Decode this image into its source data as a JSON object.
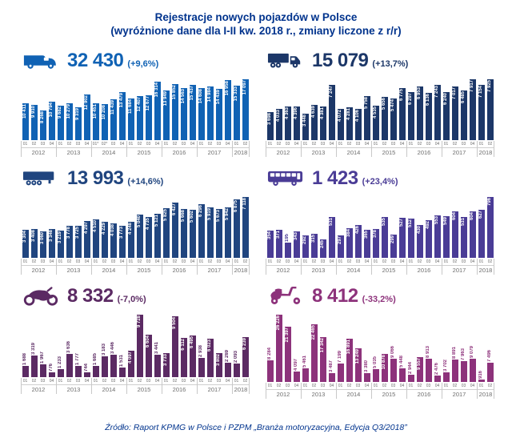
{
  "title": {
    "line1": "Rejestracje nowych pojazdów w Polsce",
    "line2": "(wyróżnione dane dla I-II kw. 2018 r., zmiany liczone z r/r)"
  },
  "footer": {
    "source": "Źródło: Raport KPMG w Polsce i PZPM „Branża motoryzacyjna, Edycja Q3/2018”"
  },
  "axis": {
    "years": [
      "2012",
      "2013",
      "2014",
      "2015",
      "2016",
      "2017",
      "2018"
    ],
    "quarters_per_year": [
      4,
      4,
      4,
      4,
      4,
      4,
      2
    ]
  },
  "chart_data": [
    {
      "type": "bar",
      "icon": "van",
      "total": "32 430",
      "change": "(+9,6%)",
      "color": "#1062B4",
      "quarter_labels": [
        "01",
        "02",
        "03",
        "04",
        "01",
        "02",
        "03",
        "04",
        "01*",
        "02*",
        "03",
        "04",
        "01",
        "02",
        "03",
        "04",
        "01",
        "02",
        "03",
        "04",
        "01",
        "02",
        "03",
        "04",
        "01",
        "02"
      ],
      "values": [
        10411,
        9910,
        8268,
        10794,
        9682,
        10279,
        9319,
        12902,
        10451,
        10208,
        11439,
        13479,
        11684,
        12407,
        12677,
        16314,
        13949,
        15852,
        14563,
        15437,
        14608,
        14984,
        14439,
        16958,
        15333,
        17097
      ]
    },
    {
      "type": "bar",
      "icon": "truck",
      "total": "15 079",
      "change": "(+13,7%)",
      "color": "#1C3768",
      "quarter_labels": [
        "01",
        "02",
        "03",
        "04",
        "01",
        "02",
        "03",
        "04",
        "01",
        "02",
        "03",
        "04",
        "01",
        "02",
        "03",
        "04",
        "01",
        "02",
        "03",
        "04",
        "01",
        "02",
        "03",
        "04",
        "01",
        "02"
      ],
      "values": [
        3698,
        4033,
        4363,
        4396,
        3448,
        4639,
        4381,
        7247,
        4072,
        4281,
        4106,
        5758,
        4535,
        5656,
        5474,
        6775,
        6297,
        6953,
        6136,
        7243,
        6240,
        7017,
        6485,
        7917,
        7154,
        7925
      ]
    },
    {
      "type": "bar",
      "icon": "semi-trailer",
      "total": "13 993",
      "change": "(+14,6%)",
      "color": "#20457F",
      "quarter_labels": [
        "01",
        "02",
        "03",
        "04",
        "01",
        "02",
        "03",
        "04",
        "01",
        "02",
        "03",
        "04",
        "01",
        "02",
        "03",
        "04",
        "01",
        "02",
        "03",
        "04",
        "01",
        "02",
        "03",
        "04",
        "01",
        "02"
      ],
      "values": [
        3304,
        3408,
        3060,
        3348,
        3219,
        3778,
        3725,
        4297,
        4510,
        4229,
        4038,
        3773,
        4248,
        5040,
        4735,
        5121,
        5825,
        6427,
        5668,
        5602,
        6296,
        5919,
        5673,
        5942,
        6875,
        7118
      ]
    },
    {
      "type": "bar",
      "icon": "bus",
      "total": "1 423",
      "change": "(+23,4%)",
      "color": "#4A3C96",
      "quarter_labels": [
        "01",
        "02",
        "03",
        "04",
        "01",
        "02",
        "03",
        "04",
        "01",
        "02",
        "03",
        "04",
        "01",
        "02",
        "03",
        "04",
        "01",
        "02",
        "03",
        "04",
        "01",
        "02",
        "03",
        "04",
        "01",
        "02"
      ],
      "values": [
        354,
        371,
        195,
        343,
        292,
        315,
        245,
        531,
        297,
        384,
        426,
        365,
        378,
        535,
        299,
        527,
        512,
        430,
        492,
        553,
        549,
        604,
        531,
        604,
        627,
        796
      ]
    },
    {
      "type": "bar",
      "icon": "motorcycle",
      "total": "8 332",
      "change": "(-7,0%)",
      "color": "#5B2A63",
      "quarter_labels": [
        "01",
        "02",
        "03",
        "04",
        "01",
        "02",
        "03",
        "04",
        "01",
        "02",
        "03",
        "04",
        "01",
        "02",
        "03",
        "04",
        "01",
        "02",
        "03",
        "04",
        "01",
        "02",
        "03",
        "04",
        "01",
        "02"
      ],
      "values": [
        1688,
        3319,
        1967,
        776,
        1233,
        3636,
        1777,
        744,
        1685,
        3183,
        3446,
        1531,
        4097,
        9728,
        6604,
        3441,
        3733,
        9504,
        6112,
        6495,
        2938,
        6023,
        3802,
        2269,
        2093,
        6239
      ]
    },
    {
      "type": "bar",
      "icon": "scooter",
      "total": "8 412",
      "change": "(-33,2%)",
      "color": "#8D327B",
      "quarter_labels": [
        "01",
        "02",
        "03",
        "04",
        "01",
        "02",
        "03",
        "04",
        "01",
        "02",
        "03",
        "04",
        "01",
        "02",
        "03",
        "04",
        "01",
        "02",
        "03",
        "04",
        "01",
        "02",
        "03",
        "04",
        "01",
        "02"
      ],
      "values": [
        8284,
        26226,
        21397,
        4097,
        5461,
        22465,
        17342,
        3487,
        7199,
        16891,
        13249,
        3380,
        5035,
        10878,
        9066,
        5448,
        2944,
        9557,
        8913,
        2476,
        3702,
        8891,
        7963,
        9079,
        916,
        7496
      ]
    }
  ]
}
